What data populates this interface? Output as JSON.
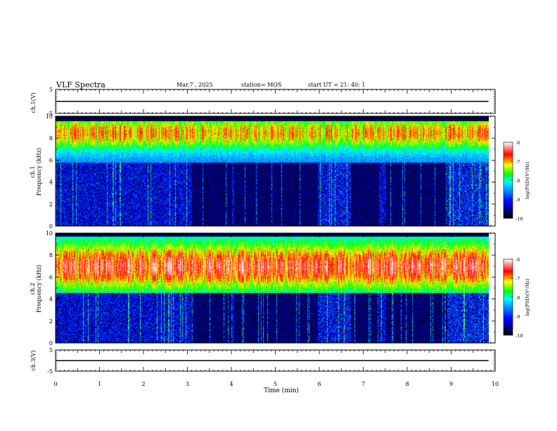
{
  "header": {
    "title": "VLF Spectra",
    "date": "Mar.7 , 2025",
    "station": "station= MOS",
    "start": "start  UT =   21: 40: 1"
  },
  "colorbar": {
    "label": "log(PSD)(V²/Hz)",
    "ticks": [
      "-6",
      "-7",
      "-8",
      "-9",
      "-10"
    ]
  },
  "chart_data": [
    {
      "type": "line",
      "panel": "ch1-voltage",
      "ylabel": "ch.1(V)",
      "ylim": [
        -5,
        5
      ],
      "yticks": [
        "5",
        "-5"
      ],
      "x": [
        0,
        9.85
      ],
      "y": [
        0,
        0
      ]
    },
    {
      "type": "heatmap",
      "panel": "ch1-spectrogram",
      "ylabel": "ch.1\nFrequency (kHz)",
      "ylim": [
        0,
        10
      ],
      "yticks": [
        "10",
        "8",
        "6",
        "4",
        "2",
        "0"
      ],
      "xlim": [
        0,
        10
      ],
      "data_extent_min": 9.85,
      "zlim": [
        -10,
        -6
      ],
      "band_peak_khz": 8.5
    },
    {
      "type": "heatmap",
      "panel": "ch2-spectrogram",
      "ylabel": "ch.2\nFrequency (kHz)",
      "ylim": [
        0,
        10
      ],
      "yticks": [
        "10",
        "8",
        "6",
        "4",
        "2",
        "0"
      ],
      "xlim": [
        0,
        10
      ],
      "data_extent_min": 9.85,
      "zlim": [
        -10,
        -6
      ],
      "band_peak_khz": 7.0
    },
    {
      "type": "line",
      "panel": "ch3-voltage",
      "ylabel": "ch.3(V)",
      "ylim": [
        -5,
        5
      ],
      "yticks": [
        "5",
        "-5"
      ],
      "x": [
        0,
        9.85
      ],
      "y": [
        0,
        0
      ]
    }
  ],
  "xaxis": {
    "label": "Time (min)",
    "ticks": [
      "0",
      "1",
      "2",
      "3",
      "4",
      "5",
      "6",
      "7",
      "8",
      "9",
      "10"
    ],
    "xlim": [
      0,
      10
    ]
  },
  "colors": {
    "background": "#ffffff",
    "axis": "#000000",
    "colormap": [
      "#000000",
      "#00007a",
      "#0000ff",
      "#00a0ff",
      "#00ffff",
      "#00ff00",
      "#ffff00",
      "#ff0000",
      "#ffffff"
    ]
  }
}
